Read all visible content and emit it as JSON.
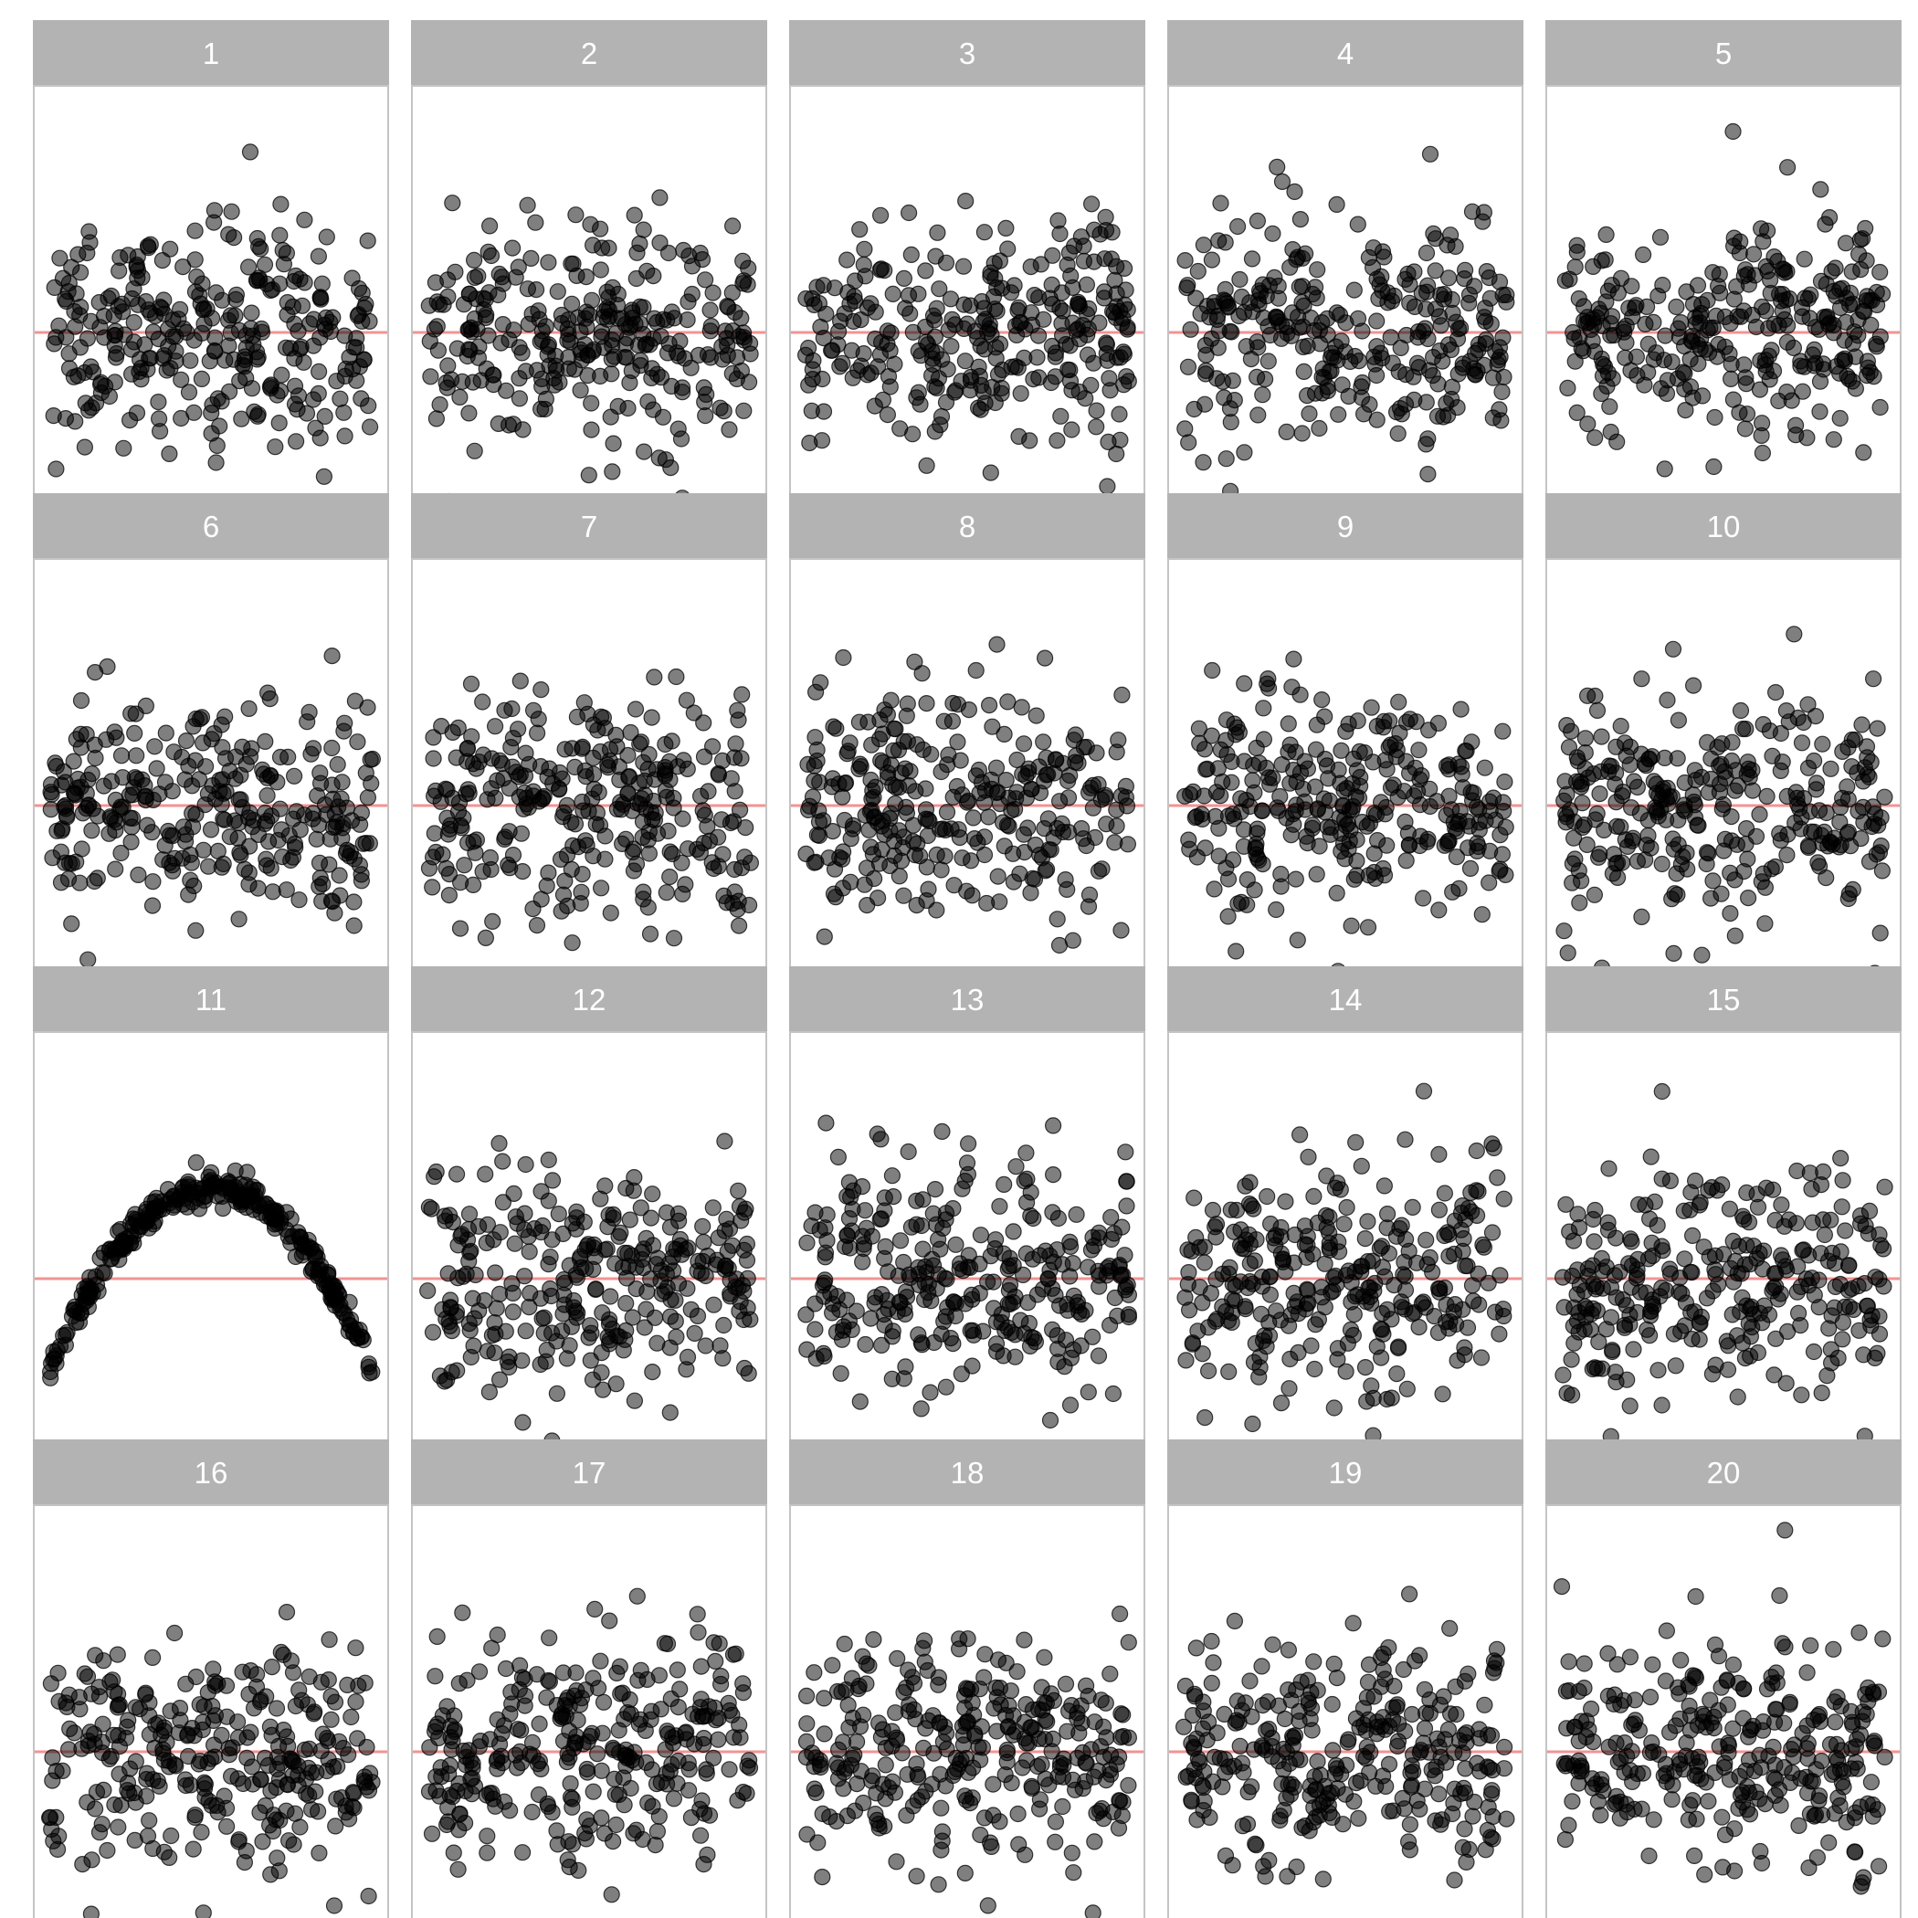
{
  "colors": {
    "strip_fill": "#b3b3b3",
    "strip_text": "#ffffff",
    "panel_border": "#c4c4c4",
    "reference_line": "#f08080",
    "point": "#000000",
    "point_opacity": 0.5
  },
  "chart_data": {
    "type": "scatter",
    "layout": "faceted lineup, 4 rows x 5 columns",
    "xlim": [
      0,
      1
    ],
    "ylim": [
      -3.5,
      4.2
    ],
    "reference_line_y": 0,
    "grid": false,
    "axes_shown": false,
    "points_per_panel": 300,
    "panels": [
      {
        "label": "1",
        "pattern": "null",
        "seed": 101,
        "sd": 0.95
      },
      {
        "label": "2",
        "pattern": "null",
        "seed": 202,
        "sd": 0.95
      },
      {
        "label": "3",
        "pattern": "null",
        "seed": 303,
        "sd": 0.95
      },
      {
        "label": "4",
        "pattern": "null",
        "seed": 404,
        "sd": 0.95
      },
      {
        "label": "5",
        "pattern": "null",
        "seed": 505,
        "sd": 0.95
      },
      {
        "label": "6",
        "pattern": "null",
        "seed": 606,
        "sd": 0.95
      },
      {
        "label": "7",
        "pattern": "null",
        "seed": 707,
        "sd": 0.95
      },
      {
        "label": "8",
        "pattern": "null",
        "seed": 808,
        "sd": 0.95
      },
      {
        "label": "9",
        "pattern": "null",
        "seed": 909,
        "sd": 0.95
      },
      {
        "label": "10",
        "pattern": "null",
        "seed": 1010,
        "sd": 0.95
      },
      {
        "label": "11",
        "pattern": "quadratic",
        "seed": 1111,
        "sd": 0.13,
        "peak": 1.55,
        "ends": -1.55
      },
      {
        "label": "12",
        "pattern": "null",
        "seed": 1212,
        "sd": 0.95
      },
      {
        "label": "13",
        "pattern": "null",
        "seed": 1313,
        "sd": 0.95
      },
      {
        "label": "14",
        "pattern": "null",
        "seed": 1414,
        "sd": 0.95
      },
      {
        "label": "15",
        "pattern": "null",
        "seed": 1515,
        "sd": 0.95
      },
      {
        "label": "16",
        "pattern": "null",
        "seed": 1616,
        "sd": 0.95
      },
      {
        "label": "17",
        "pattern": "null",
        "seed": 1717,
        "sd": 0.95
      },
      {
        "label": "18",
        "pattern": "null",
        "seed": 1818,
        "sd": 0.95
      },
      {
        "label": "19",
        "pattern": "null",
        "seed": 1919,
        "sd": 0.95
      },
      {
        "label": "20",
        "pattern": "null",
        "seed": 2020,
        "sd": 0.95
      }
    ]
  }
}
